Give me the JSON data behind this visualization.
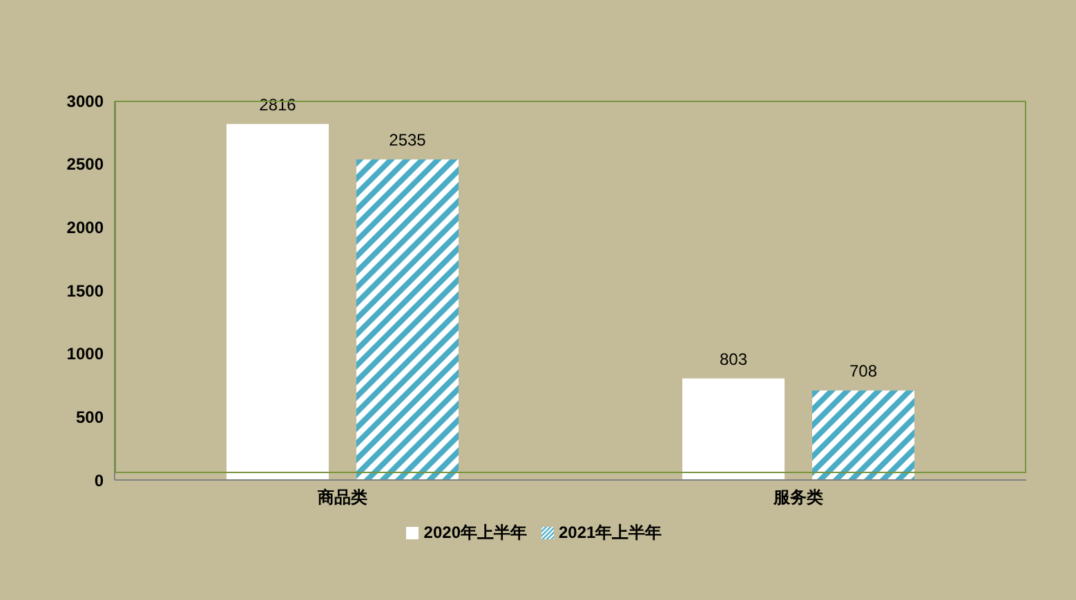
{
  "chart_data": {
    "type": "bar",
    "categories": [
      "商品类",
      "服务类"
    ],
    "series": [
      {
        "name": "2020年上半年",
        "color": "#ffffff",
        "values": [
          2816,
          803
        ]
      },
      {
        "name": "2021年上半年",
        "color": "#4bacc6",
        "values": [
          2535,
          708
        ]
      }
    ],
    "ylim": [
      0,
      3000
    ],
    "yticks": [
      0,
      500,
      1000,
      1500,
      2000,
      2500,
      3000
    ],
    "grid": false,
    "legend": "bottom",
    "data_labels": true
  }
}
